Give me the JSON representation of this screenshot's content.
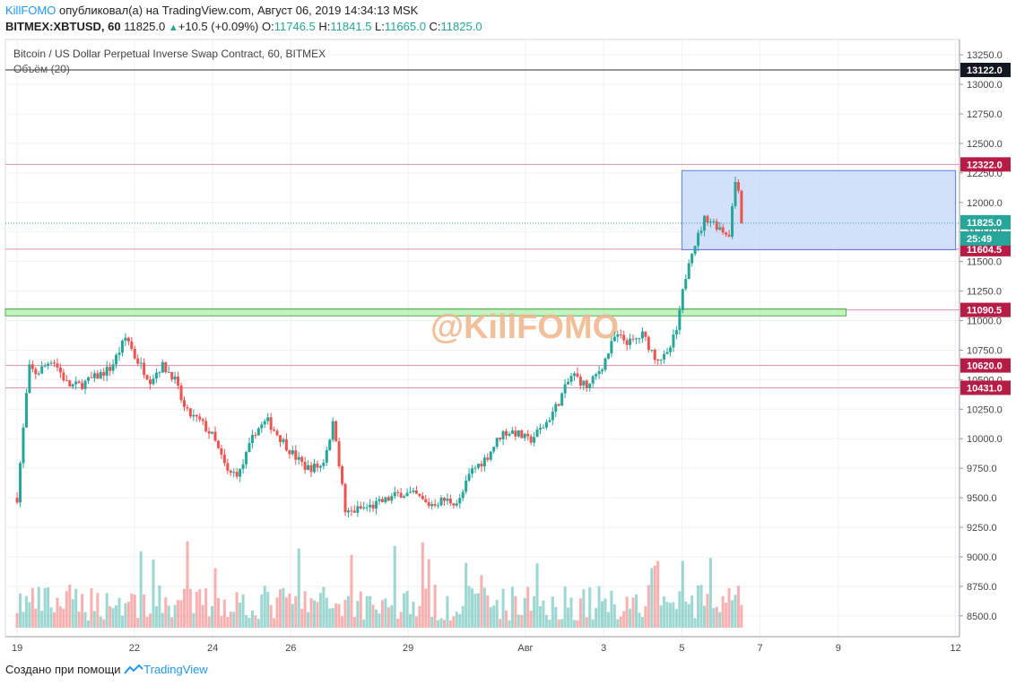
{
  "header": {
    "author": "KillFOMO",
    "published": "опубликовал(а) на TradingView.com, Август 06, 2019 14:34:13 MSK",
    "symbol": "BITMEX:XBTUSD, 60",
    "price": "11825.0",
    "change_arrow": "▲",
    "change": "+10.5 (+0.09%)",
    "o_label": "O:",
    "o_value": "11746.5",
    "h_label": "H:",
    "h_value": "11841.5",
    "l_label": "L:",
    "l_value": "11665.0",
    "c_label": "C:",
    "c_value": "11825.0"
  },
  "legend": {
    "instrument": "Bitcoin / US Dollar Perpetual Inverse Swap Contract, 60, BITMEX",
    "volume": "Объём (20)"
  },
  "footer": {
    "created_with": "Создано при помощи",
    "brand": "TradingView"
  },
  "colors": {
    "up": "#26a69a",
    "down": "#ef5350",
    "level_line": "#e091a8",
    "zone_fill": "#c7d9f8",
    "zone_border": "#5b7fd6",
    "support_fill": "#a5f0a5",
    "support_border": "#4caf50",
    "watermark": "#f0b48a",
    "last_price": "#26a69a",
    "label_dark": "#131722",
    "label_red": "#b71c47"
  },
  "chart_data": {
    "type": "candlestick",
    "title": "Bitcoin / US Dollar Perpetual Inverse Swap Contract, 60, BITMEX",
    "ylim": [
      8400,
      13380
    ],
    "y_ticks": [
      8500,
      8750,
      9000,
      9250,
      9500,
      9750,
      10000,
      10250,
      10500,
      10750,
      11000,
      11250,
      11500,
      11750,
      12000,
      12250,
      12500,
      12750,
      13000,
      13250
    ],
    "x_tick_labels": [
      "19",
      "22",
      "24",
      "26",
      "29",
      "Авг",
      "3",
      "5",
      "7",
      "9",
      "12"
    ],
    "x_tick_days": [
      0,
      3,
      5,
      7,
      10,
      13,
      15,
      17,
      19,
      21,
      24
    ],
    "x_range_days": [
      -0.3,
      24.1
    ],
    "price_path": [
      [
        0,
        9500
      ],
      [
        0.3,
        10600
      ],
      [
        0.5,
        10550
      ],
      [
        0.9,
        10680
      ],
      [
        1.3,
        10450
      ],
      [
        1.6,
        10450
      ],
      [
        2.0,
        10520
      ],
      [
        2.4,
        10600
      ],
      [
        2.8,
        10870
      ],
      [
        3.0,
        10700
      ],
      [
        3.4,
        10500
      ],
      [
        3.7,
        10620
      ],
      [
        4.0,
        10530
      ],
      [
        4.3,
        10230
      ],
      [
        4.7,
        10140
      ],
      [
        5.0,
        10020
      ],
      [
        5.4,
        9700
      ],
      [
        5.7,
        9720
      ],
      [
        6.1,
        10070
      ],
      [
        6.4,
        10150
      ],
      [
        6.7,
        10020
      ],
      [
        7.1,
        9850
      ],
      [
        7.4,
        9750
      ],
      [
        7.8,
        9770
      ],
      [
        8.1,
        10150
      ],
      [
        8.4,
        9360
      ],
      [
        8.7,
        9400
      ],
      [
        9.1,
        9430
      ],
      [
        9.5,
        9490
      ],
      [
        9.8,
        9540
      ],
      [
        10.2,
        9520
      ],
      [
        10.5,
        9440
      ],
      [
        10.9,
        9480
      ],
      [
        11.3,
        9460
      ],
      [
        11.6,
        9720
      ],
      [
        12.0,
        9840
      ],
      [
        12.4,
        10050
      ],
      [
        12.7,
        10060
      ],
      [
        13.1,
        9980
      ],
      [
        13.5,
        10120
      ],
      [
        13.8,
        10280
      ],
      [
        14.2,
        10550
      ],
      [
        14.6,
        10430
      ],
      [
        15.0,
        10640
      ],
      [
        15.3,
        10870
      ],
      [
        15.7,
        10810
      ],
      [
        16.0,
        10880
      ],
      [
        16.3,
        10700
      ],
      [
        16.6,
        10680
      ],
      [
        16.9,
        10950
      ],
      [
        17.0,
        11200
      ],
      [
        17.2,
        11560
      ],
      [
        17.4,
        11700
      ],
      [
        17.6,
        11880
      ],
      [
        18.0,
        11780
      ],
      [
        18.2,
        11720
      ],
      [
        18.4,
        12270
      ],
      [
        18.55,
        11825
      ]
    ],
    "last_price": 11825.0,
    "countdown": "25:49",
    "levels": [
      {
        "value": 13122.0,
        "label": "13122.0",
        "kind": "dark"
      },
      {
        "value": 12322.0,
        "label": "12322.0",
        "kind": "red"
      },
      {
        "value": 11604.5,
        "label": "11604.5",
        "kind": "red"
      },
      {
        "value": 11090.5,
        "label": "11090.5",
        "kind": "red"
      },
      {
        "value": 10620.0,
        "label": "10620.0",
        "kind": "red"
      },
      {
        "value": 10431.0,
        "label": "10431.0",
        "kind": "red"
      }
    ],
    "zone": {
      "x_from_day": 17.0,
      "x_to_day": 24.0,
      "y_low": 11600,
      "y_high": 12270
    },
    "support_band": {
      "x_from_day": -0.3,
      "x_to_day": 21.2,
      "y_low": 11040,
      "y_high": 11100
    },
    "watermark": "@KillFOMO",
    "volume_indicator": "Объём (20)"
  }
}
